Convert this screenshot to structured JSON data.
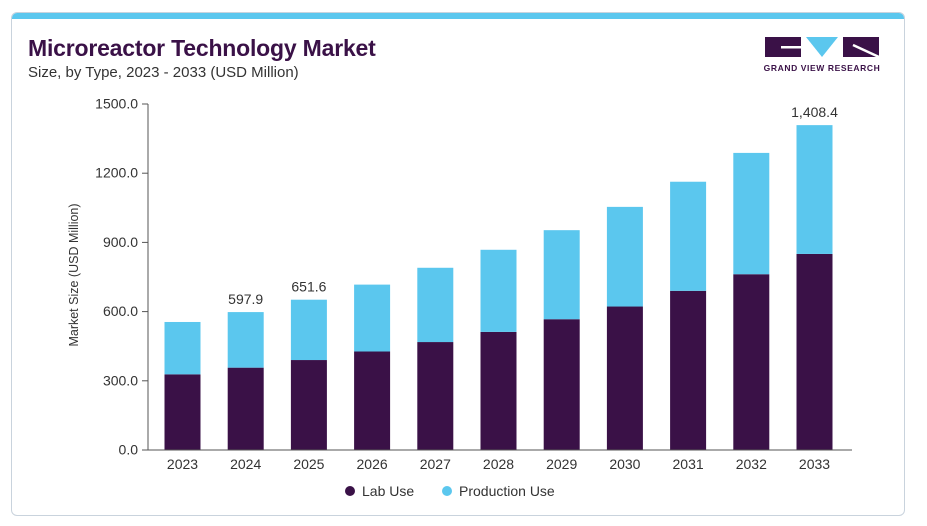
{
  "header": {
    "title": "Microreactor Technology Market",
    "subtitle": "Size, by Type, 2023 - 2033 (USD Million)"
  },
  "logo": {
    "text": "GRAND VIEW RESEARCH",
    "colors": {
      "dark": "#3a1147",
      "accent": "#5bc7ee"
    }
  },
  "chart_data": {
    "type": "bar",
    "stacked": true,
    "categories": [
      "2023",
      "2024",
      "2025",
      "2026",
      "2027",
      "2028",
      "2029",
      "2030",
      "2031",
      "2032",
      "2033"
    ],
    "series": [
      {
        "name": "Lab Use",
        "color": "#3a1147",
        "values": [
          328,
          357,
          390,
          427,
          468,
          512,
          567,
          622,
          690,
          762,
          850
        ]
      },
      {
        "name": "Production Use",
        "color": "#5bc7ee",
        "values": [
          227,
          240.9,
          261.6,
          290,
          322,
          356,
          386,
          432,
          473,
          526,
          558.4
        ]
      }
    ],
    "data_labels": [
      {
        "category": "2024",
        "text": "597.9"
      },
      {
        "category": "2025",
        "text": "651.6"
      },
      {
        "category": "2033",
        "text": "1,408.4"
      }
    ],
    "ylabel": "Market Size (USD Million)",
    "xlabel": "",
    "ylim": [
      0,
      1500
    ],
    "yticks": [
      0,
      300,
      600,
      900,
      1200,
      1500
    ],
    "ytick_labels": [
      "0.0",
      "300.0",
      "600.0",
      "900.0",
      "1200.0",
      "1500.0"
    ],
    "grid": false,
    "legend_position": "bottom-center"
  }
}
